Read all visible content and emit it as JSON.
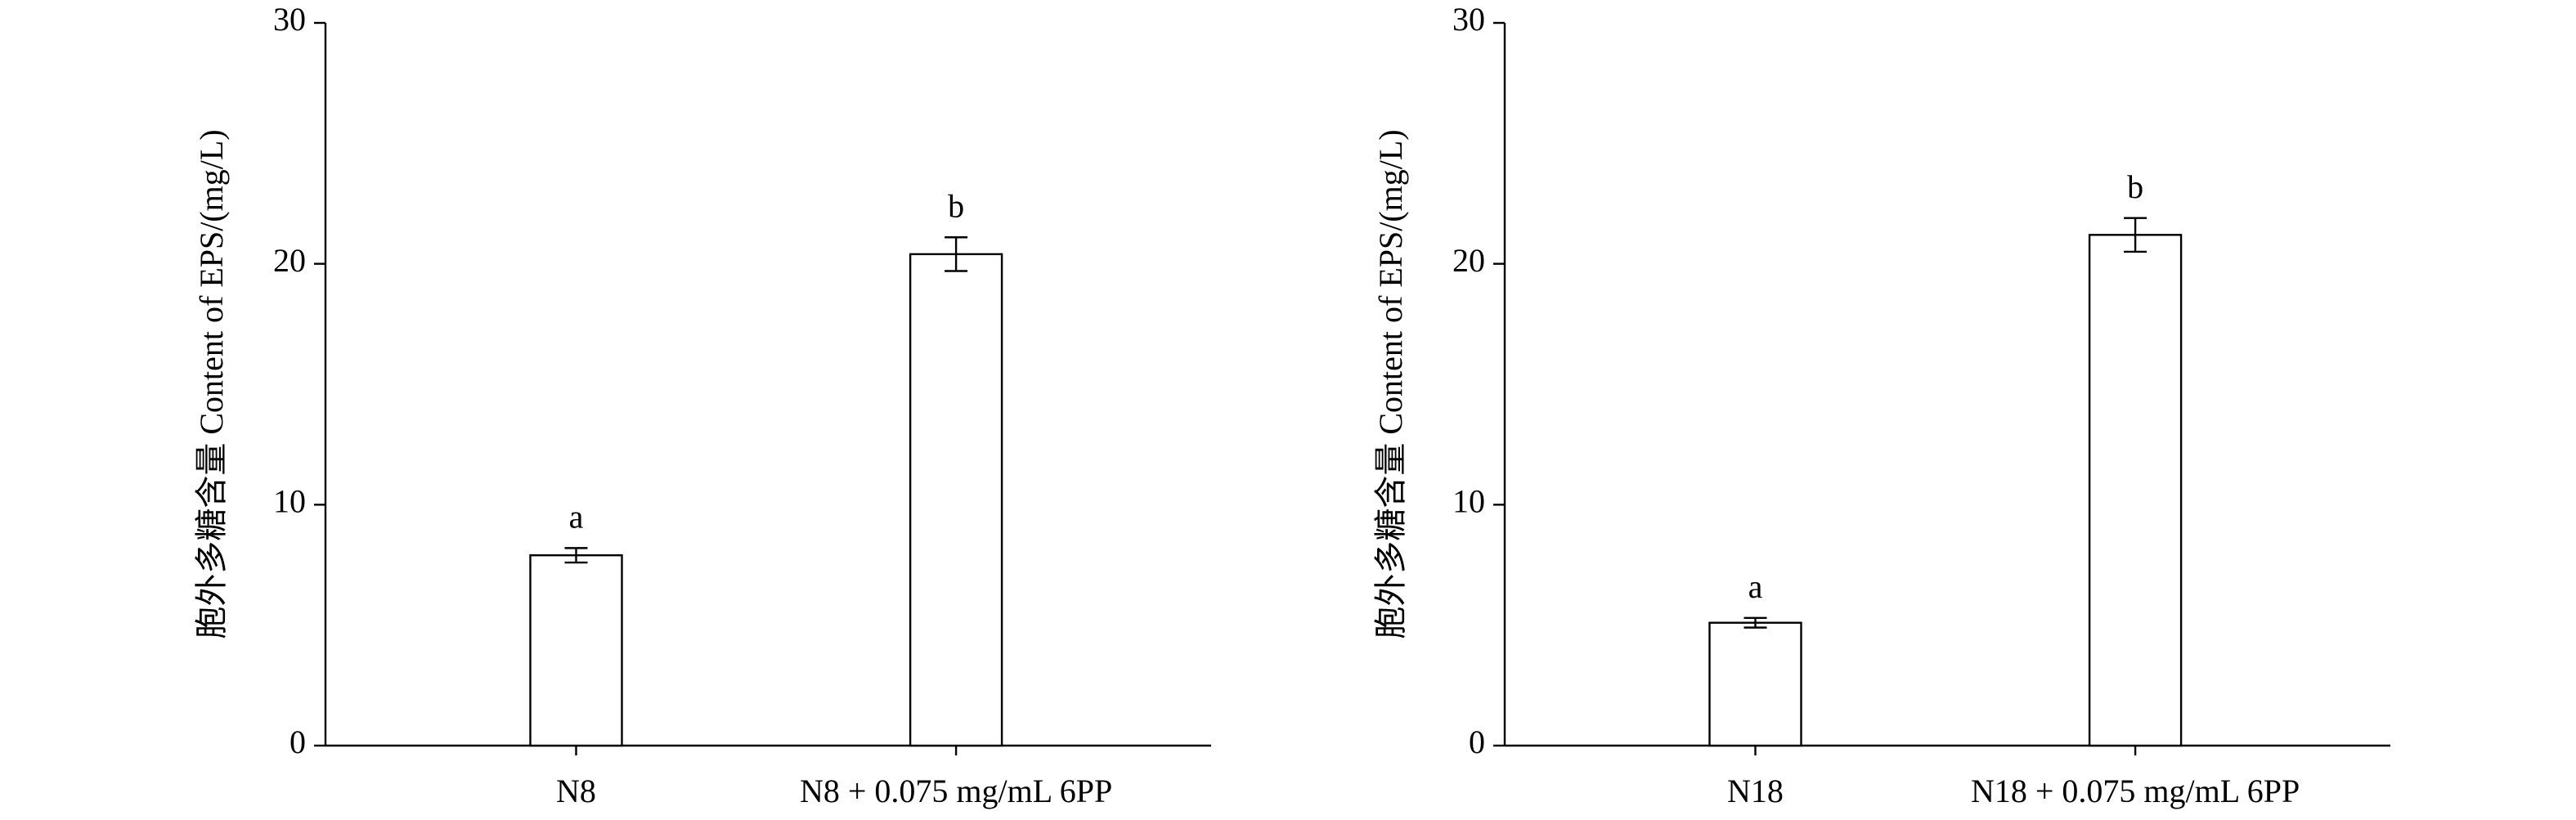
{
  "chart_data": [
    {
      "type": "bar",
      "ylabel": "胞外多糖含量 Content of EPS/(mg/L)",
      "categories": [
        "N8",
        "N8 + 0.075 mg/mL 6PP"
      ],
      "values": [
        7.9,
        20.4
      ],
      "errors": [
        0.3,
        0.7
      ],
      "annotations": [
        "a",
        "b"
      ],
      "color": "#ffffff",
      "ylim": [
        0,
        30
      ],
      "yticks": [
        0,
        10,
        20,
        30
      ]
    },
    {
      "type": "bar",
      "ylabel": "胞外多糖含量 Content of EPS/(mg/L)",
      "categories": [
        "N18",
        "N18 + 0.075 mg/mL 6PP"
      ],
      "values": [
        5.1,
        21.2
      ],
      "errors": [
        0.2,
        0.7
      ],
      "annotations": [
        "a",
        "b"
      ],
      "color": "#ffffff",
      "ylim": [
        0,
        30
      ],
      "yticks": [
        0,
        10,
        20,
        30
      ]
    }
  ]
}
